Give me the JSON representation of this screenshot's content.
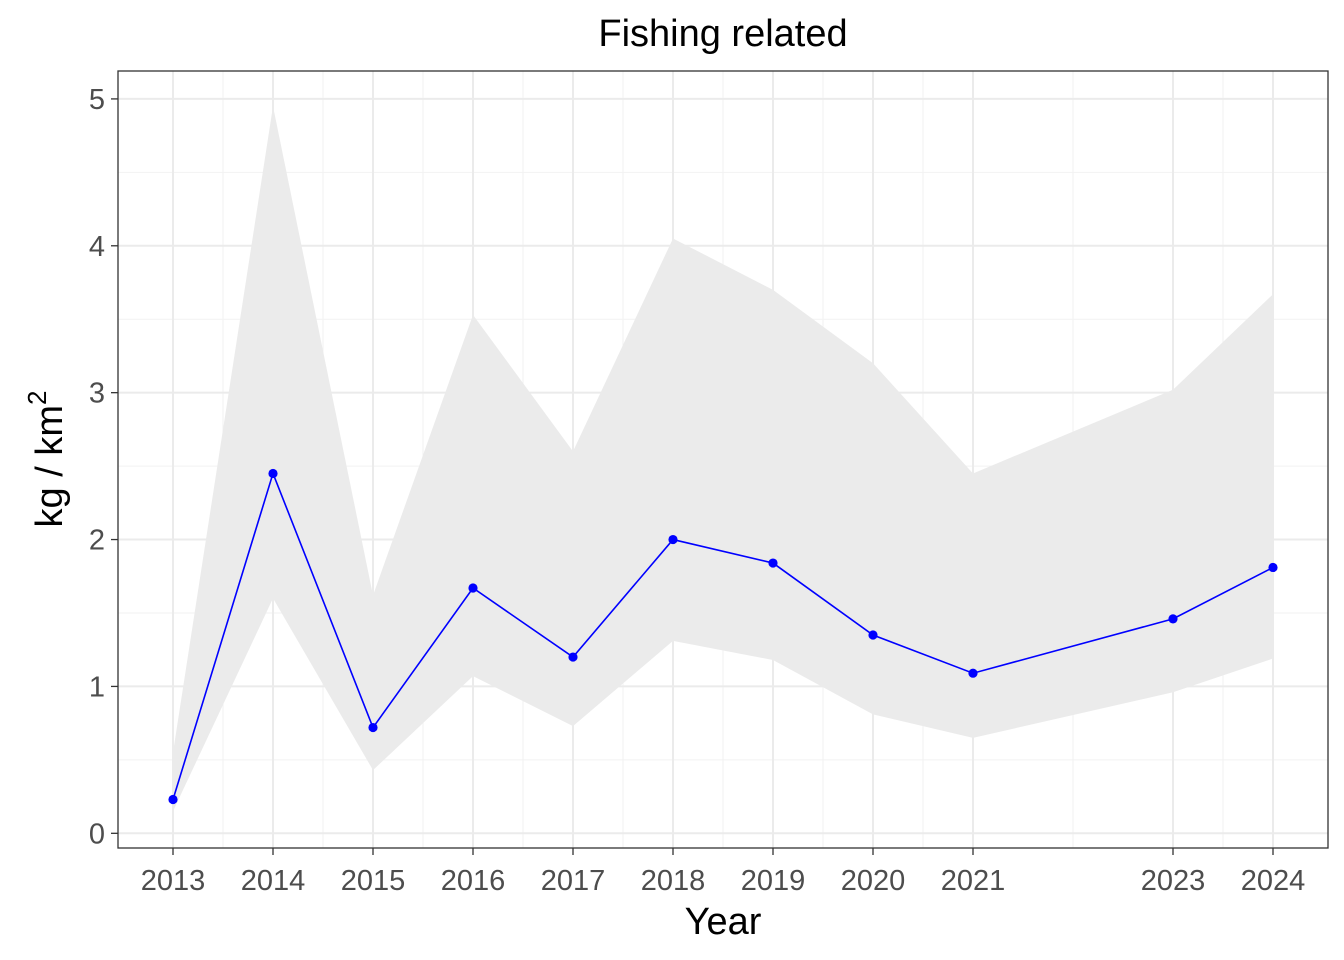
{
  "chart_data": {
    "type": "line",
    "title": "Fishing related",
    "xlabel": "Year",
    "ylabel": "kg / km",
    "ylabel_superscript": "2",
    "x": [
      2013,
      2014,
      2015,
      2016,
      2017,
      2018,
      2019,
      2020,
      2021,
      2023,
      2024
    ],
    "x_tick_labels": [
      "2013",
      "2014",
      "2015",
      "2016",
      "2017",
      "2018",
      "2019",
      "2020",
      "2021",
      "2023",
      "2024"
    ],
    "y_ticks": [
      0,
      1,
      2,
      3,
      4,
      5
    ],
    "y_tick_labels": [
      "0",
      "1",
      "2",
      "3",
      "4",
      "5"
    ],
    "xlim": [
      2012.45,
      2024.55
    ],
    "ylim": [
      -0.1,
      5.19
    ],
    "grid": true,
    "series": [
      {
        "values": [
          0.23,
          2.45,
          0.72,
          1.67,
          1.2,
          2.0,
          1.84,
          1.35,
          1.09,
          1.46,
          1.81
        ],
        "lower": [
          0.15,
          1.6,
          0.43,
          1.07,
          0.73,
          1.31,
          1.18,
          0.81,
          0.65,
          0.96,
          1.19
        ],
        "upper": [
          0.55,
          4.95,
          1.62,
          3.53,
          2.6,
          4.05,
          3.7,
          3.2,
          2.45,
          3.02,
          3.67
        ],
        "color": "#0000ff",
        "ribbon_color": "#ebebeb"
      }
    ]
  }
}
